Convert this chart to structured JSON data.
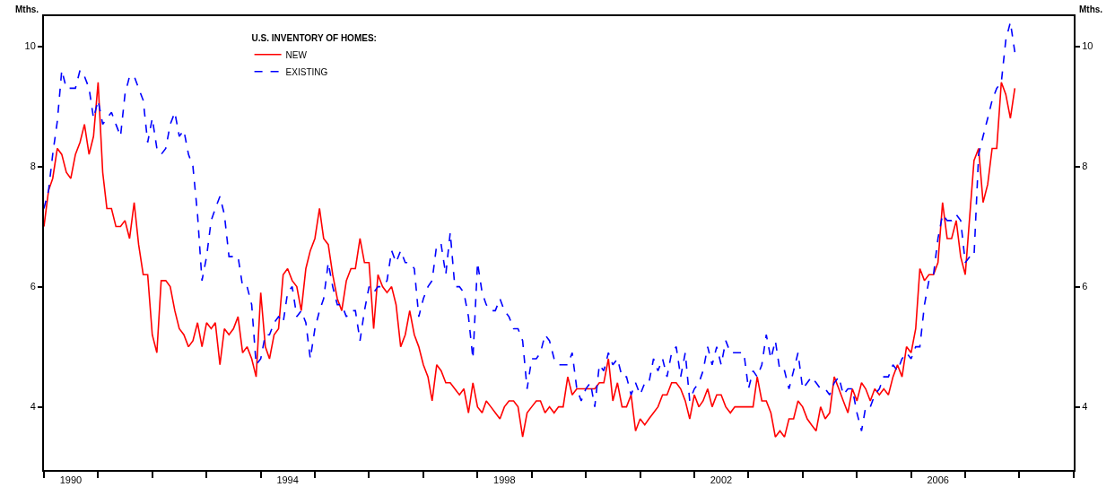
{
  "chart_data": {
    "type": "line",
    "legend_title": "U.S. INVENTORY OF HOMES:",
    "ylabel": "Mths.",
    "y2label": "Mths.",
    "x": [
      "1990-01",
      "1990-02",
      "1990-03",
      "1990-04",
      "1990-05",
      "1990-06",
      "1990-07",
      "1990-08",
      "1990-09",
      "1990-10",
      "1990-11",
      "1990-12",
      "1991-01",
      "1991-02",
      "1991-03",
      "1991-04",
      "1991-05",
      "1991-06",
      "1991-07",
      "1991-08",
      "1991-09",
      "1991-10",
      "1991-11",
      "1991-12",
      "1992-01",
      "1992-02",
      "1992-03",
      "1992-04",
      "1992-05",
      "1992-06",
      "1992-07",
      "1992-08",
      "1992-09",
      "1992-10",
      "1992-11",
      "1992-12",
      "1993-01",
      "1993-02",
      "1993-03",
      "1993-04",
      "1993-05",
      "1993-06",
      "1993-07",
      "1993-08",
      "1993-09",
      "1993-10",
      "1993-11",
      "1993-12",
      "1994-01",
      "1994-02",
      "1994-03",
      "1994-04",
      "1994-05",
      "1994-06",
      "1994-07",
      "1994-08",
      "1994-09",
      "1994-10",
      "1994-11",
      "1994-12",
      "1995-01",
      "1995-02",
      "1995-03",
      "1995-04",
      "1995-05",
      "1995-06",
      "1995-07",
      "1995-08",
      "1995-09",
      "1995-10",
      "1995-11",
      "1995-12",
      "1996-01",
      "1996-02",
      "1996-03",
      "1996-04",
      "1996-05",
      "1996-06",
      "1996-07",
      "1996-08",
      "1996-09",
      "1996-10",
      "1996-11",
      "1996-12",
      "1997-01",
      "1997-02",
      "1997-03",
      "1997-04",
      "1997-05",
      "1997-06",
      "1997-07",
      "1997-08",
      "1997-09",
      "1997-10",
      "1997-11",
      "1997-12",
      "1998-01",
      "1998-02",
      "1998-03",
      "1998-04",
      "1998-05",
      "1998-06",
      "1998-07",
      "1998-08",
      "1998-09",
      "1998-10",
      "1998-11",
      "1998-12",
      "1999-01",
      "1999-02",
      "1999-03",
      "1999-04",
      "1999-05",
      "1999-06",
      "1999-07",
      "1999-08",
      "1999-09",
      "1999-10",
      "1999-11",
      "1999-12",
      "2000-01",
      "2000-02",
      "2000-03",
      "2000-04",
      "2000-05",
      "2000-06",
      "2000-07",
      "2000-08",
      "2000-09",
      "2000-10",
      "2000-11",
      "2000-12",
      "2001-01",
      "2001-02",
      "2001-03",
      "2001-04",
      "2001-05",
      "2001-06",
      "2001-07",
      "2001-08",
      "2001-09",
      "2001-10",
      "2001-11",
      "2001-12",
      "2002-01",
      "2002-02",
      "2002-03",
      "2002-04",
      "2002-05",
      "2002-06",
      "2002-07",
      "2002-08",
      "2002-09",
      "2002-10",
      "2002-11",
      "2002-12",
      "2003-01",
      "2003-02",
      "2003-03",
      "2003-04",
      "2003-05",
      "2003-06",
      "2003-07",
      "2003-08",
      "2003-09",
      "2003-10",
      "2003-11",
      "2003-12",
      "2004-01",
      "2004-02",
      "2004-03",
      "2004-04",
      "2004-05",
      "2004-06",
      "2004-07",
      "2004-08",
      "2004-09",
      "2004-10",
      "2004-11",
      "2004-12",
      "2005-01",
      "2005-02",
      "2005-03",
      "2005-04",
      "2005-05",
      "2005-06",
      "2005-07",
      "2005-08",
      "2005-09",
      "2005-10",
      "2005-11",
      "2005-12",
      "2006-01",
      "2006-02",
      "2006-03",
      "2006-04",
      "2006-05",
      "2006-06",
      "2006-07",
      "2006-08",
      "2006-09",
      "2006-10",
      "2006-11",
      "2006-12",
      "2007-01",
      "2007-02",
      "2007-03",
      "2007-04",
      "2007-05",
      "2007-06",
      "2007-07",
      "2007-08",
      "2007-09",
      "2007-10",
      "2007-11",
      "2007-12"
    ],
    "series": [
      {
        "name": "NEW",
        "color": "#ff0000",
        "line_style": "solid",
        "values": [
          7.0,
          7.6,
          7.8,
          8.3,
          8.2,
          7.9,
          7.8,
          8.2,
          8.4,
          8.7,
          8.2,
          8.5,
          9.4,
          7.9,
          7.3,
          7.3,
          7.0,
          7.0,
          7.1,
          6.8,
          7.4,
          6.7,
          6.2,
          6.2,
          5.2,
          4.9,
          6.1,
          6.1,
          6.0,
          5.6,
          5.3,
          5.2,
          5.0,
          5.1,
          5.4,
          5.0,
          5.4,
          5.3,
          5.4,
          4.7,
          5.3,
          5.2,
          5.3,
          5.5,
          4.9,
          5.0,
          4.8,
          4.5,
          5.9,
          5.0,
          4.8,
          5.2,
          5.3,
          6.2,
          6.3,
          6.1,
          6.0,
          5.6,
          6.3,
          6.6,
          6.8,
          7.3,
          6.8,
          6.7,
          6.2,
          5.8,
          5.6,
          6.1,
          6.3,
          6.3,
          6.8,
          6.4,
          6.4,
          5.3,
          6.2,
          6.0,
          5.9,
          6.0,
          5.7,
          5.0,
          5.2,
          5.6,
          5.2,
          5.0,
          4.7,
          4.5,
          4.1,
          4.7,
          4.6,
          4.4,
          4.4,
          4.3,
          4.2,
          4.3,
          3.9,
          4.4,
          4.0,
          3.9,
          4.1,
          4.0,
          3.9,
          3.8,
          4.0,
          4.1,
          4.1,
          4.0,
          3.5,
          3.9,
          4.0,
          4.1,
          4.1,
          3.9,
          4.0,
          3.9,
          4.0,
          4.0,
          4.5,
          4.2,
          4.3,
          4.3,
          4.3,
          4.3,
          4.3,
          4.4,
          4.4,
          4.8,
          4.1,
          4.4,
          4.0,
          4.0,
          4.2,
          3.6,
          3.8,
          3.7,
          3.8,
          3.9,
          4.0,
          4.2,
          4.2,
          4.4,
          4.4,
          4.3,
          4.1,
          3.8,
          4.2,
          4.0,
          4.1,
          4.3,
          4.0,
          4.2,
          4.2,
          4.0,
          3.9,
          4.0,
          4.0,
          4.0,
          4.0,
          4.0,
          4.5,
          4.1,
          4.1,
          3.9,
          3.5,
          3.6,
          3.5,
          3.8,
          3.8,
          4.1,
          4.0,
          3.8,
          3.7,
          3.6,
          4.0,
          3.8,
          3.9,
          4.5,
          4.3,
          4.1,
          3.9,
          4.3,
          4.1,
          4.4,
          4.3,
          4.1,
          4.3,
          4.2,
          4.3,
          4.2,
          4.5,
          4.7,
          4.5,
          5.0,
          4.9,
          5.3,
          6.3,
          6.1,
          6.2,
          6.2,
          6.4,
          7.4,
          6.8,
          6.8,
          7.1,
          6.5,
          6.2,
          7.2,
          8.1,
          8.3,
          7.4,
          7.7,
          8.3,
          8.3,
          9.4,
          9.2,
          8.8,
          9.3
        ]
      },
      {
        "name": "EXISTING",
        "color": "#0000ff",
        "line_style": "dashed",
        "values": [
          7.3,
          7.6,
          8.2,
          8.75,
          9.6,
          9.3,
          9.3,
          9.3,
          9.6,
          9.5,
          9.3,
          8.8,
          9.1,
          8.7,
          8.8,
          8.9,
          8.7,
          8.5,
          9.2,
          9.5,
          9.5,
          9.3,
          9.1,
          8.4,
          8.8,
          8.3,
          8.2,
          8.3,
          8.7,
          8.9,
          8.5,
          8.6,
          8.2,
          8.0,
          7.2,
          6.1,
          6.5,
          7.1,
          7.3,
          7.5,
          7.2,
          6.5,
          6.5,
          6.5,
          6.0,
          6.0,
          5.7,
          4.7,
          4.8,
          5.2,
          5.2,
          5.4,
          5.5,
          5.4,
          5.9,
          6.0,
          5.5,
          5.6,
          5.4,
          4.8,
          5.3,
          5.6,
          5.8,
          6.4,
          6.0,
          5.7,
          5.7,
          5.5,
          5.6,
          5.6,
          5.1,
          5.6,
          6.0,
          5.9,
          6.0,
          6.0,
          6.1,
          6.6,
          6.4,
          6.6,
          6.4,
          6.4,
          6.3,
          5.5,
          5.8,
          6.0,
          6.1,
          6.7,
          6.7,
          6.2,
          6.9,
          6.0,
          6.0,
          5.9,
          5.5,
          4.8,
          6.4,
          5.9,
          5.7,
          5.6,
          5.6,
          5.8,
          5.6,
          5.5,
          5.3,
          5.3,
          5.1,
          4.3,
          4.8,
          4.8,
          4.9,
          5.2,
          5.1,
          4.8,
          4.7,
          4.7,
          4.7,
          4.9,
          4.3,
          4.1,
          4.3,
          4.4,
          4.0,
          4.7,
          4.6,
          4.9,
          4.7,
          4.8,
          4.5,
          4.5,
          4.2,
          4.4,
          4.2,
          4.4,
          4.4,
          4.8,
          4.6,
          4.8,
          4.5,
          4.9,
          5.0,
          4.5,
          4.9,
          4.1,
          4.3,
          4.4,
          4.6,
          5.0,
          4.7,
          5.0,
          4.7,
          5.1,
          4.9,
          4.9,
          4.9,
          4.9,
          4.3,
          4.6,
          4.5,
          4.7,
          5.2,
          4.8,
          5.1,
          4.6,
          4.6,
          4.3,
          4.6,
          4.9,
          4.3,
          4.4,
          4.5,
          4.4,
          4.3,
          4.3,
          4.2,
          4.4,
          4.5,
          4.2,
          4.3,
          4.3,
          3.9,
          3.6,
          4.0,
          4.0,
          4.2,
          4.3,
          4.5,
          4.5,
          4.7,
          4.6,
          4.8,
          4.9,
          4.8,
          5.0,
          5.0,
          5.7,
          6.1,
          6.2,
          6.8,
          7.2,
          7.1,
          7.1,
          7.2,
          7.1,
          6.4,
          6.5,
          6.5,
          8.2,
          8.5,
          8.8,
          9.1,
          9.3,
          9.4,
          10.1,
          10.4,
          9.9
        ]
      }
    ],
    "xlim": [
      "1990-01",
      "2009-01"
    ],
    "xticks": [
      {
        "value": "1990",
        "label": null
      },
      {
        "value": "1990-07",
        "label": "1990"
      },
      {
        "value": "1991",
        "label": null
      },
      {
        "value": "1992",
        "label": null
      },
      {
        "value": "1993",
        "label": null
      },
      {
        "value": "1994",
        "label": null
      },
      {
        "value": "1994-07",
        "label": "1994"
      },
      {
        "value": "1995",
        "label": null
      },
      {
        "value": "1996",
        "label": null
      },
      {
        "value": "1997",
        "label": null
      },
      {
        "value": "1998",
        "label": null
      },
      {
        "value": "1998-07",
        "label": "1998"
      },
      {
        "value": "1999",
        "label": null
      },
      {
        "value": "2000",
        "label": null
      },
      {
        "value": "2001",
        "label": null
      },
      {
        "value": "2002",
        "label": null
      },
      {
        "value": "2002-07",
        "label": "2002"
      },
      {
        "value": "2003",
        "label": null
      },
      {
        "value": "2004",
        "label": null
      },
      {
        "value": "2005",
        "label": null
      },
      {
        "value": "2006",
        "label": null
      },
      {
        "value": "2006-07",
        "label": "2006"
      },
      {
        "value": "2007",
        "label": null
      },
      {
        "value": "2008",
        "label": null
      },
      {
        "value": "2009",
        "label": null
      }
    ],
    "ylim": [
      2.95,
      10.5
    ],
    "yticks": [
      4,
      6,
      8,
      10
    ],
    "y2lim": [
      2.95,
      10.5
    ],
    "y2ticks": [
      4,
      6,
      8,
      10
    ],
    "legend": "top left"
  }
}
